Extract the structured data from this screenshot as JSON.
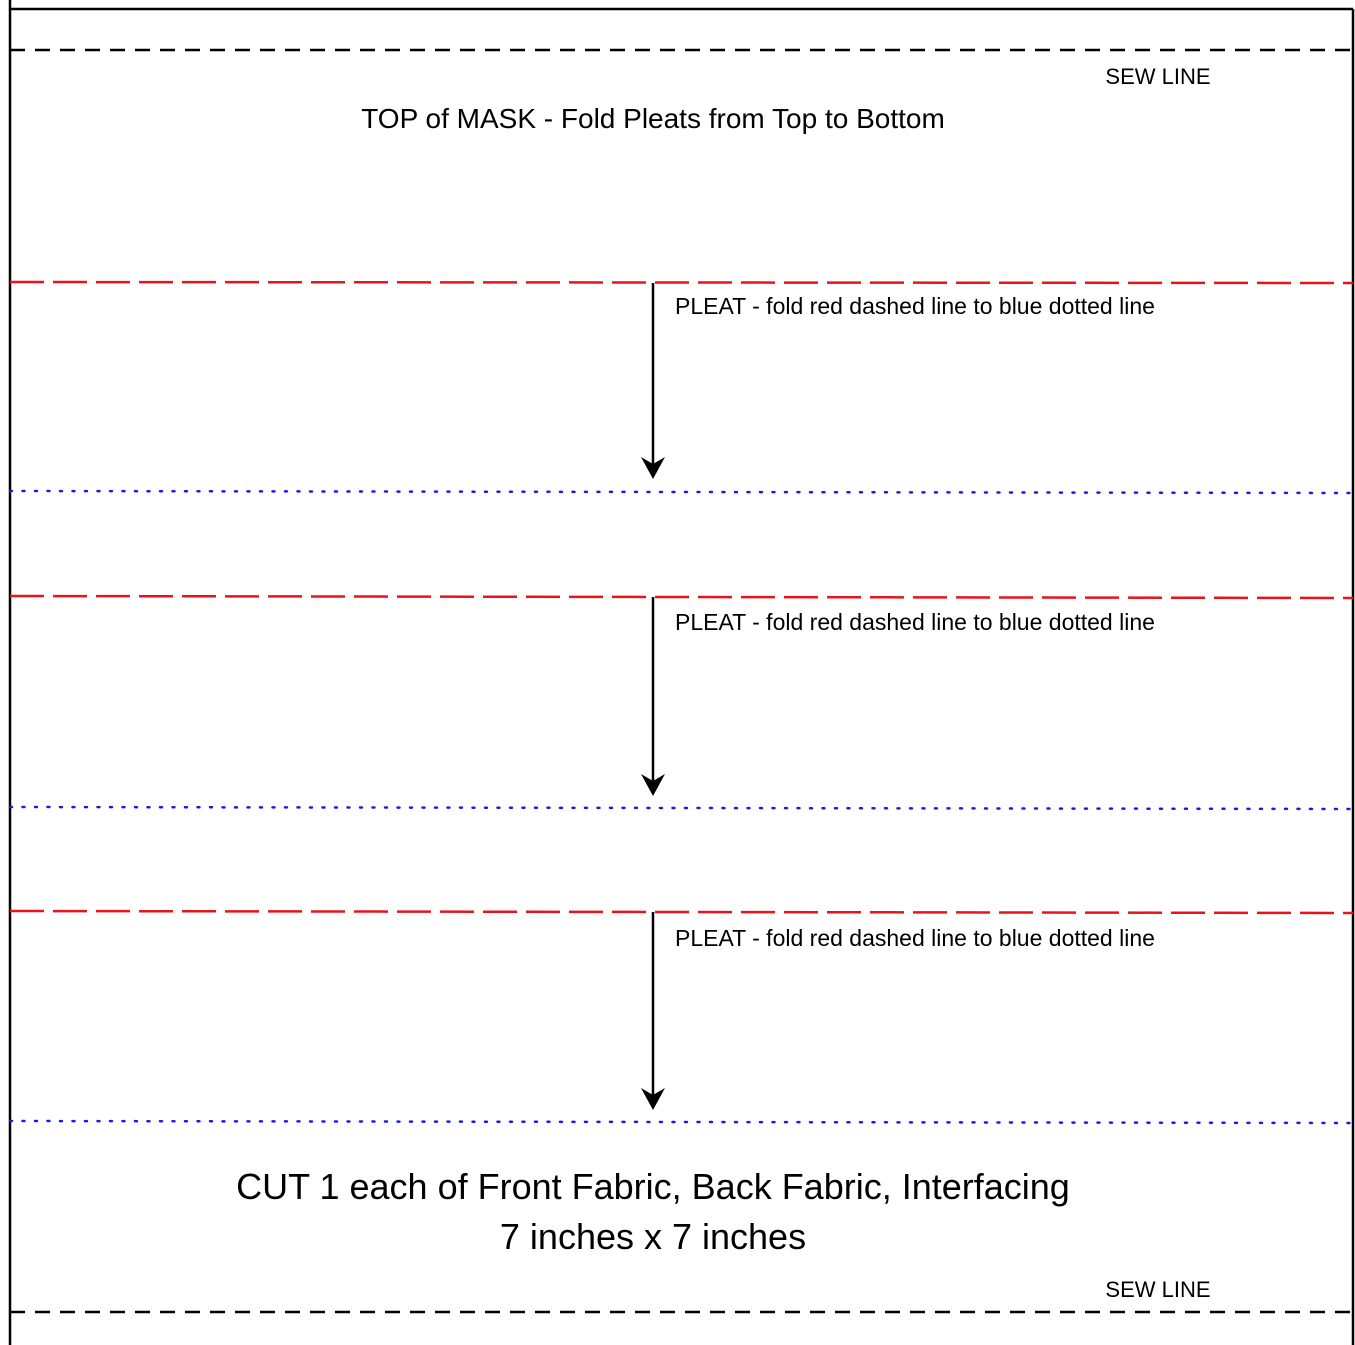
{
  "pattern": {
    "top_sew_label": "SEW LINE",
    "top_title": "TOP of MASK - Fold Pleats from Top to Bottom",
    "pleats": [
      {
        "label": "PLEAT - fold red dashed line to blue dotted line"
      },
      {
        "label": "PLEAT - fold red dashed line to blue dotted line"
      },
      {
        "label": "PLEAT - fold red dashed line to blue dotted line"
      }
    ],
    "cut_line_1": "CUT 1 each of Front Fabric, Back Fabric, Interfacing",
    "cut_line_2": "7 inches x 7 inches",
    "bottom_sew_label": "SEW LINE"
  },
  "colors": {
    "border": "#000000",
    "sew_line": "#000000",
    "fold_line": "#e8141b",
    "target_line": "#1a1ae6",
    "arrow": "#000000"
  }
}
